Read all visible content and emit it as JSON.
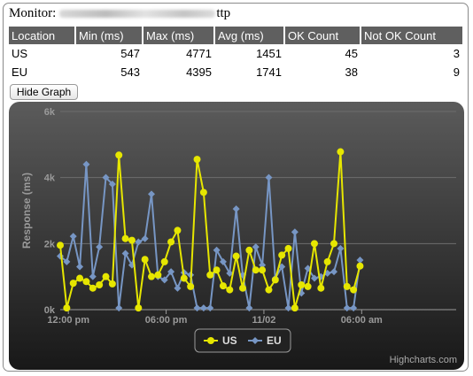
{
  "monitor": {
    "label": "Monitor:",
    "url_suffix": "ttp"
  },
  "table": {
    "headers": [
      "Location",
      "Min (ms)",
      "Max (ms)",
      "Avg (ms)",
      "OK Count",
      "Not OK Count"
    ],
    "rows": [
      [
        "US",
        "547",
        "4771",
        "1451",
        "45",
        "3"
      ],
      [
        "EU",
        "543",
        "4395",
        "1741",
        "38",
        "9"
      ]
    ]
  },
  "hide_graph_button": {
    "label": "Hide Graph"
  },
  "credits": "Highcharts.com",
  "colors": {
    "us": "#e6e600",
    "eu": "#7796c4",
    "chart_bg_top": "#5b5b5b",
    "chart_bg_bottom": "#181818",
    "header_bg": "#5f5f5f"
  },
  "chart_data": {
    "type": "line",
    "title": "",
    "ylabel": "Response (ms)",
    "xlabel": "",
    "ylim": [
      0,
      6000
    ],
    "yticks": [
      0,
      2000,
      4000,
      6000
    ],
    "ytick_labels": [
      "0k",
      "2k",
      "4k",
      "6k"
    ],
    "x_start_hours": 11.5,
    "x_end_hours": 35.8,
    "xticks": [
      {
        "label": "12:00 pm",
        "hour": 12
      },
      {
        "label": "06:00 pm",
        "hour": 18
      },
      {
        "label": "11/02",
        "hour": 24
      },
      {
        "label": "06:00 am",
        "hour": 30
      }
    ],
    "grid": true,
    "legend_position": "bottom-center",
    "series": [
      {
        "name": "US",
        "color": "#e6e600",
        "marker": "circle",
        "points": [
          [
            11.5,
            1950
          ],
          [
            11.9,
            50
          ],
          [
            12.3,
            800
          ],
          [
            12.7,
            950
          ],
          [
            13.1,
            850
          ],
          [
            13.5,
            650
          ],
          [
            13.9,
            750
          ],
          [
            14.3,
            1000
          ],
          [
            14.7,
            780
          ],
          [
            15.1,
            4680
          ],
          [
            15.5,
            2150
          ],
          [
            15.9,
            2100
          ],
          [
            16.3,
            50
          ],
          [
            16.7,
            1520
          ],
          [
            17.1,
            1000
          ],
          [
            17.5,
            1050
          ],
          [
            17.9,
            1450
          ],
          [
            18.3,
            2050
          ],
          [
            18.7,
            2400
          ],
          [
            19.1,
            950
          ],
          [
            19.5,
            700
          ],
          [
            19.9,
            4550
          ],
          [
            20.3,
            3550
          ],
          [
            20.7,
            1050
          ],
          [
            21.1,
            1200
          ],
          [
            21.5,
            720
          ],
          [
            21.9,
            600
          ],
          [
            22.3,
            1620
          ],
          [
            22.7,
            650
          ],
          [
            23.1,
            1800
          ],
          [
            23.5,
            1200
          ],
          [
            23.9,
            1200
          ],
          [
            24.3,
            600
          ],
          [
            24.7,
            900
          ],
          [
            25.1,
            1650
          ],
          [
            25.5,
            1850
          ],
          [
            25.9,
            50
          ],
          [
            26.3,
            750
          ],
          [
            26.7,
            700
          ],
          [
            27.1,
            2000
          ],
          [
            27.5,
            650
          ],
          [
            27.9,
            1450
          ],
          [
            28.3,
            2000
          ],
          [
            28.7,
            4780
          ],
          [
            29.1,
            700
          ],
          [
            29.5,
            600
          ],
          [
            29.9,
            1320
          ]
        ]
      },
      {
        "name": "EU",
        "color": "#7796c4",
        "marker": "diamond",
        "points": [
          [
            11.5,
            1620
          ],
          [
            11.9,
            1450
          ],
          [
            12.3,
            2220
          ],
          [
            12.7,
            1300
          ],
          [
            13.1,
            4400
          ],
          [
            13.5,
            1000
          ],
          [
            13.9,
            1900
          ],
          [
            14.3,
            4000
          ],
          [
            14.7,
            3800
          ],
          [
            15.1,
            50
          ],
          [
            15.5,
            1700
          ],
          [
            15.9,
            1350
          ],
          [
            16.3,
            2050
          ],
          [
            16.7,
            2150
          ],
          [
            17.1,
            3500
          ],
          [
            17.5,
            1000
          ],
          [
            17.9,
            900
          ],
          [
            18.3,
            1150
          ],
          [
            18.7,
            650
          ],
          [
            19.1,
            1120
          ],
          [
            19.5,
            1050
          ],
          [
            19.9,
            50
          ],
          [
            20.3,
            50
          ],
          [
            20.7,
            50
          ],
          [
            21.1,
            1800
          ],
          [
            21.5,
            1450
          ],
          [
            21.9,
            1100
          ],
          [
            22.3,
            3050
          ],
          [
            22.7,
            1050
          ],
          [
            23.1,
            50
          ],
          [
            23.5,
            1900
          ],
          [
            23.9,
            1350
          ],
          [
            24.3,
            4000
          ],
          [
            24.7,
            950
          ],
          [
            25.1,
            1300
          ],
          [
            25.5,
            50
          ],
          [
            25.9,
            2350
          ],
          [
            26.3,
            500
          ],
          [
            26.7,
            1250
          ],
          [
            27.1,
            950
          ],
          [
            27.5,
            1000
          ],
          [
            27.9,
            1100
          ],
          [
            28.3,
            1150
          ],
          [
            28.7,
            1850
          ],
          [
            29.1,
            50
          ],
          [
            29.5,
            50
          ],
          [
            29.9,
            1500
          ]
        ]
      }
    ]
  }
}
